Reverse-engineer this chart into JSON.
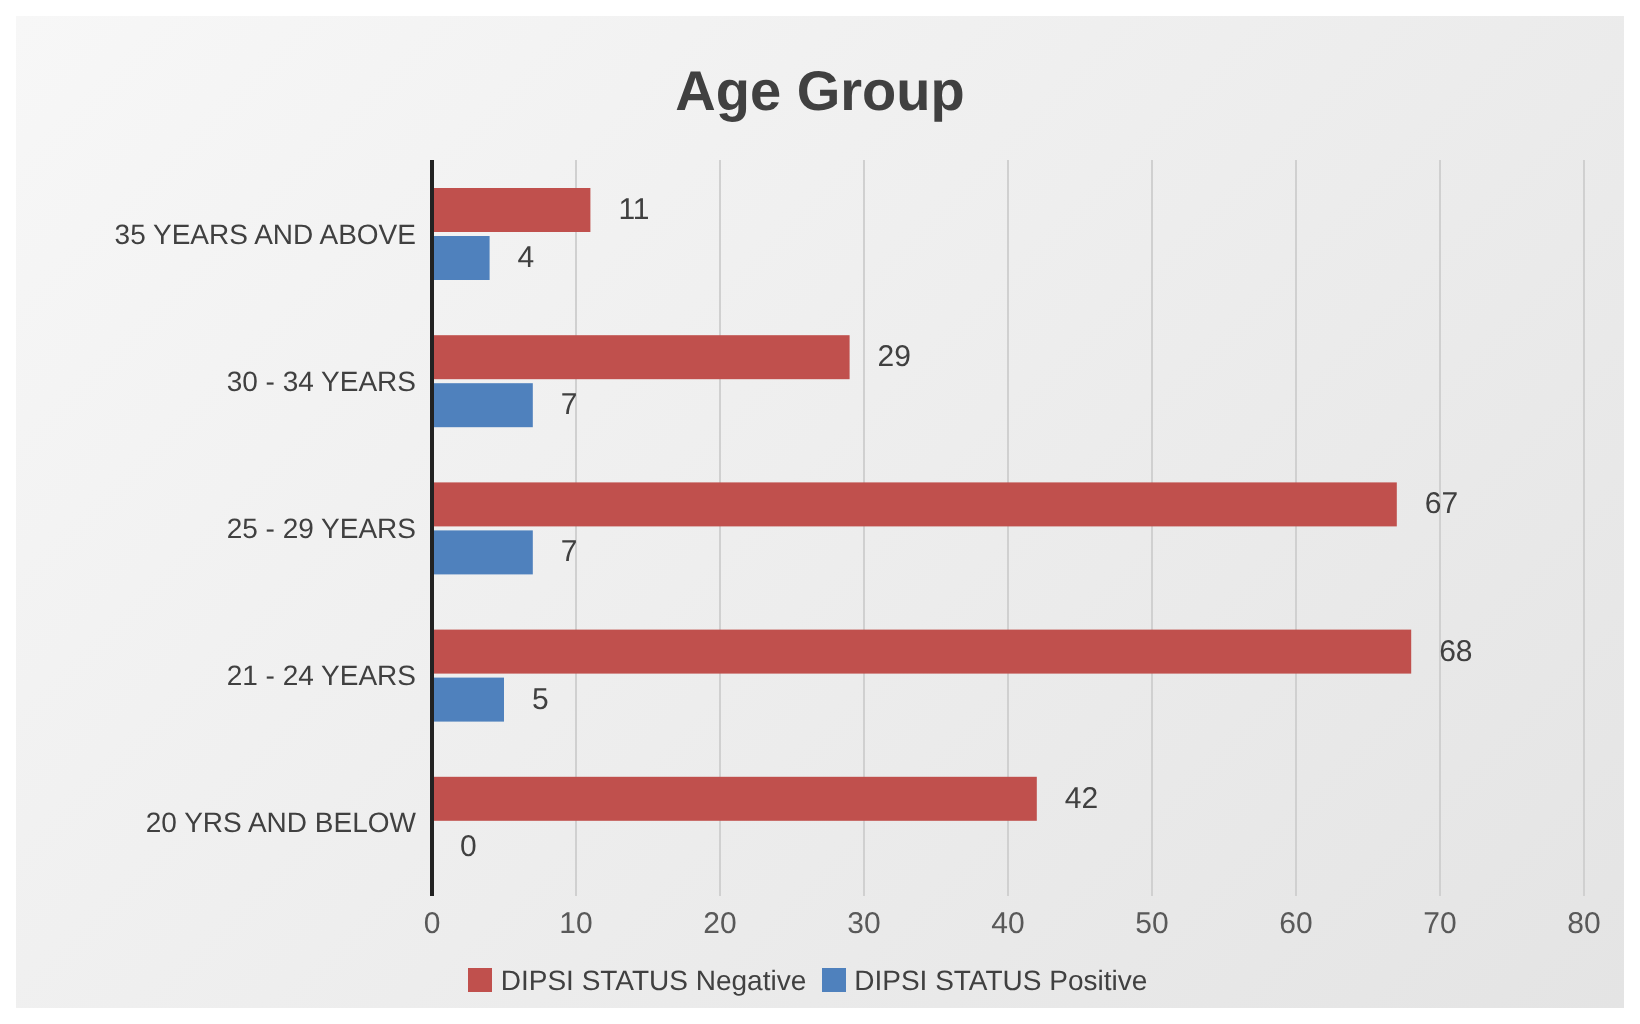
{
  "chart_data": {
    "type": "bar",
    "title": "Age Group",
    "orientation": "horizontal",
    "categories": [
      "35 YEARS AND ABOVE",
      "30 - 34 YEARS",
      "25 - 29 YEARS",
      "21 - 24 YEARS",
      "20 YRS AND BELOW"
    ],
    "series": [
      {
        "name": "DIPSI STATUS Negative",
        "color": "#c0504d",
        "values": [
          11,
          29,
          67,
          68,
          42
        ]
      },
      {
        "name": "DIPSI STATUS Positive",
        "color": "#4f81bd",
        "values": [
          4,
          7,
          7,
          5,
          0
        ]
      }
    ],
    "xlim": [
      0,
      80
    ],
    "xticks": [
      0,
      10,
      20,
      30,
      40,
      50,
      60,
      70,
      80
    ],
    "grid": "x",
    "legend": "bottom",
    "data_labels": true
  }
}
